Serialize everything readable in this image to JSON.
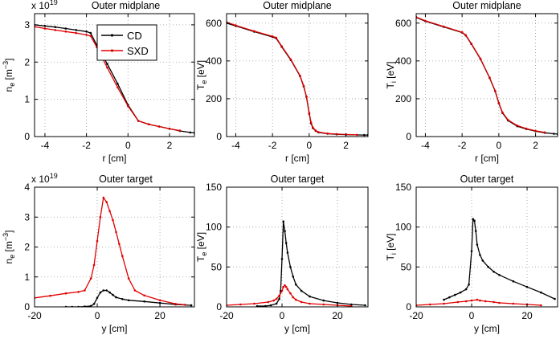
{
  "series_colors": {
    "CD": "#000000",
    "SXD": "#e00000"
  },
  "legend": {
    "entries": [
      "CD",
      "SXD"
    ]
  },
  "chart_data": [
    {
      "id": "ne-mid",
      "type": "line",
      "title": "Outer midplane",
      "scale": "x 10",
      "scale_exp": "19",
      "xlabel": "r [cm]",
      "ylabel_main": "n",
      "ylabel_sub": "e",
      "ylabel_unit": " [m",
      "ylabel_sup": "−3",
      "ylabel_close": "]",
      "xlim": [
        -4.5,
        3.2
      ],
      "ylim": [
        0,
        3.3
      ],
      "xticks": [
        -4,
        -2,
        0,
        2
      ],
      "yticks": [
        0,
        1,
        2,
        3
      ],
      "series": [
        {
          "name": "CD",
          "x": [
            -4.5,
            -4,
            -3.5,
            -3,
            -2.5,
            -2,
            -1.8,
            -1.5,
            -1,
            -0.5,
            0,
            0.5,
            1,
            1.5,
            2,
            2.5,
            3,
            3.2
          ],
          "y": [
            3.0,
            2.97,
            2.94,
            2.9,
            2.86,
            2.82,
            2.78,
            2.45,
            1.95,
            1.42,
            0.85,
            0.42,
            0.33,
            0.27,
            0.21,
            0.15,
            0.11,
            0.1
          ]
        },
        {
          "name": "SXD",
          "x": [
            -4.5,
            -4,
            -3.5,
            -3,
            -2.5,
            -2,
            -1.8,
            -1.5,
            -1,
            -0.5,
            0,
            0.5,
            1,
            1.5,
            2,
            2.5
          ],
          "y": [
            2.95,
            2.9,
            2.86,
            2.82,
            2.78,
            2.73,
            2.7,
            2.4,
            1.85,
            1.32,
            0.82,
            0.42,
            0.33,
            0.27,
            0.21,
            0.16
          ]
        }
      ]
    },
    {
      "id": "te-mid",
      "type": "line",
      "title": "Outer midplane",
      "xlabel": "r [cm]",
      "ylabel_main": "T",
      "ylabel_sub": "e",
      "ylabel_unit": " [eV]",
      "xlim": [
        -4.5,
        3.2
      ],
      "ylim": [
        0,
        650
      ],
      "xticks": [
        -4,
        -2,
        0,
        2
      ],
      "yticks": [
        0,
        200,
        400,
        600
      ],
      "series": [
        {
          "name": "CD",
          "x": [
            -4.5,
            -4,
            -3,
            -2,
            -1.8,
            -1.5,
            -1,
            -0.5,
            -0.3,
            -0.15,
            0,
            0.1,
            0.2,
            0.35,
            0.5,
            1,
            1.5,
            2,
            3,
            3.2
          ],
          "y": [
            600,
            585,
            555,
            527,
            520,
            475,
            405,
            320,
            265,
            210,
            120,
            70,
            45,
            30,
            22,
            15,
            12,
            10,
            8,
            8
          ]
        },
        {
          "name": "SXD",
          "x": [
            -4.5,
            -4,
            -3,
            -2,
            -1.8,
            -1.5,
            -1,
            -0.5,
            -0.3,
            -0.15,
            0,
            0.1,
            0.2,
            0.35,
            0.5,
            1,
            1.5,
            2,
            2.6
          ],
          "y": [
            605,
            588,
            558,
            530,
            523,
            478,
            408,
            322,
            268,
            212,
            125,
            75,
            48,
            32,
            24,
            16,
            13,
            11,
            9
          ]
        }
      ]
    },
    {
      "id": "ti-mid",
      "type": "line",
      "title": "Outer midplane",
      "xlabel": "r [cm]",
      "ylabel_main": "T",
      "ylabel_sub": "i",
      "ylabel_unit": " [eV]",
      "xlim": [
        -4.5,
        3.2
      ],
      "ylim": [
        0,
        650
      ],
      "xticks": [
        -4,
        -2,
        0,
        2
      ],
      "yticks": [
        0,
        200,
        400,
        600
      ],
      "series": [
        {
          "name": "CD",
          "x": [
            -4.5,
            -4,
            -3,
            -2,
            -1.8,
            -1.5,
            -1,
            -0.5,
            -0.2,
            0,
            0.2,
            0.5,
            1,
            1.5,
            2,
            2.5,
            3,
            3.2
          ],
          "y": [
            630,
            610,
            580,
            550,
            535,
            490,
            410,
            310,
            240,
            175,
            125,
            85,
            55,
            40,
            28,
            20,
            15,
            13
          ]
        },
        {
          "name": "SXD",
          "x": [
            -4.5,
            -4,
            -3,
            -2,
            -1.8,
            -1.5,
            -1,
            -0.5,
            -0.2,
            0,
            0.2,
            0.5,
            1,
            1.5,
            2,
            2.5
          ],
          "y": [
            632,
            612,
            582,
            552,
            537,
            492,
            412,
            312,
            242,
            178,
            128,
            88,
            58,
            42,
            30,
            22
          ]
        }
      ]
    },
    {
      "id": "ne-tgt",
      "type": "line",
      "title": "Outer target",
      "scale": "x 10",
      "scale_exp": "19",
      "xlabel": "y [cm]",
      "ylabel_main": "n",
      "ylabel_sub": "e",
      "ylabel_unit": " [m",
      "ylabel_sup": "−3",
      "ylabel_close": "]",
      "xlim": [
        -20,
        31
      ],
      "ylim": [
        0,
        4
      ],
      "xticks": [
        -20,
        0,
        20
      ],
      "yticks": [
        0,
        1,
        2,
        3,
        4
      ],
      "series": [
        {
          "name": "CD",
          "x": [
            -10,
            -8,
            -6,
            -4,
            -2,
            -1,
            0,
            1,
            2,
            3,
            4,
            5,
            6,
            8,
            10,
            15,
            20,
            25,
            30
          ],
          "y": [
            0.0,
            0.0,
            0.0,
            0.01,
            0.03,
            0.1,
            0.3,
            0.48,
            0.55,
            0.55,
            0.48,
            0.4,
            0.32,
            0.26,
            0.22,
            0.18,
            0.13,
            0.08,
            0.05
          ]
        },
        {
          "name": "SXD",
          "x": [
            -20,
            -15,
            -10,
            -6,
            -4,
            -2,
            -1,
            0,
            1,
            2,
            3,
            4,
            5,
            6,
            7,
            8,
            10,
            12,
            15,
            20,
            25,
            28
          ],
          "y": [
            0.3,
            0.37,
            0.45,
            0.5,
            0.55,
            0.95,
            1.4,
            2.2,
            3.0,
            3.65,
            3.5,
            3.2,
            2.9,
            2.5,
            2.1,
            1.7,
            0.95,
            0.55,
            0.38,
            0.22,
            0.1,
            0.07
          ]
        }
      ]
    },
    {
      "id": "te-tgt",
      "type": "line",
      "title": "Outer target",
      "xlabel": "y [cm]",
      "ylabel_main": "T",
      "ylabel_sub": "e",
      "ylabel_unit": " [eV]",
      "xlim": [
        -20,
        31
      ],
      "ylim": [
        0,
        150
      ],
      "xticks": [
        -20,
        0,
        20
      ],
      "yticks": [
        0,
        50,
        100,
        150
      ],
      "series": [
        {
          "name": "CD",
          "x": [
            -9,
            -6,
            -4,
            -2,
            -1,
            -0.5,
            0,
            0.5,
            1,
            1.5,
            2,
            3,
            4,
            5,
            7,
            10,
            15,
            20,
            25,
            30
          ],
          "y": [
            1,
            1,
            2,
            4,
            10,
            20,
            60,
            107,
            95,
            80,
            68,
            50,
            38,
            28,
            20,
            13,
            8,
            5,
            3,
            2
          ]
        },
        {
          "name": "SXD",
          "x": [
            -20,
            -15,
            -10,
            -5,
            -3,
            -2,
            -1,
            0,
            0.5,
            1,
            1.5,
            2,
            3,
            4,
            5,
            7,
            10,
            15,
            20,
            25
          ],
          "y": [
            2,
            3,
            4,
            6,
            8,
            10,
            14,
            20,
            25,
            27,
            25,
            22,
            17,
            12,
            9,
            6,
            4,
            3,
            2,
            1
          ]
        }
      ]
    },
    {
      "id": "ti-tgt",
      "type": "line",
      "title": "Outer target",
      "xlabel": "y [cm]",
      "ylabel_main": "T",
      "ylabel_sub": "i",
      "ylabel_unit": " [eV]",
      "xlim": [
        -20,
        31
      ],
      "ylim": [
        0,
        150
      ],
      "xticks": [
        -20,
        0,
        20
      ],
      "yticks": [
        0,
        50,
        100,
        150
      ],
      "series": [
        {
          "name": "CD",
          "x": [
            -10,
            -8,
            -6,
            -4,
            -2,
            -1,
            0,
            0.5,
            1,
            1.5,
            2,
            3,
            4,
            6,
            8,
            10,
            15,
            20,
            25,
            30
          ],
          "y": [
            9,
            12,
            15,
            18,
            22,
            28,
            70,
            110,
            108,
            95,
            78,
            65,
            58,
            50,
            44,
            40,
            32,
            25,
            18,
            10
          ]
        },
        {
          "name": "SXD",
          "x": [
            -20,
            -15,
            -10,
            -5,
            -2,
            0,
            2,
            3,
            5,
            8,
            10,
            15,
            20,
            25
          ],
          "y": [
            2,
            3,
            4,
            6,
            7,
            8,
            9,
            8,
            7,
            6,
            5,
            4,
            3,
            2
          ]
        }
      ]
    }
  ]
}
